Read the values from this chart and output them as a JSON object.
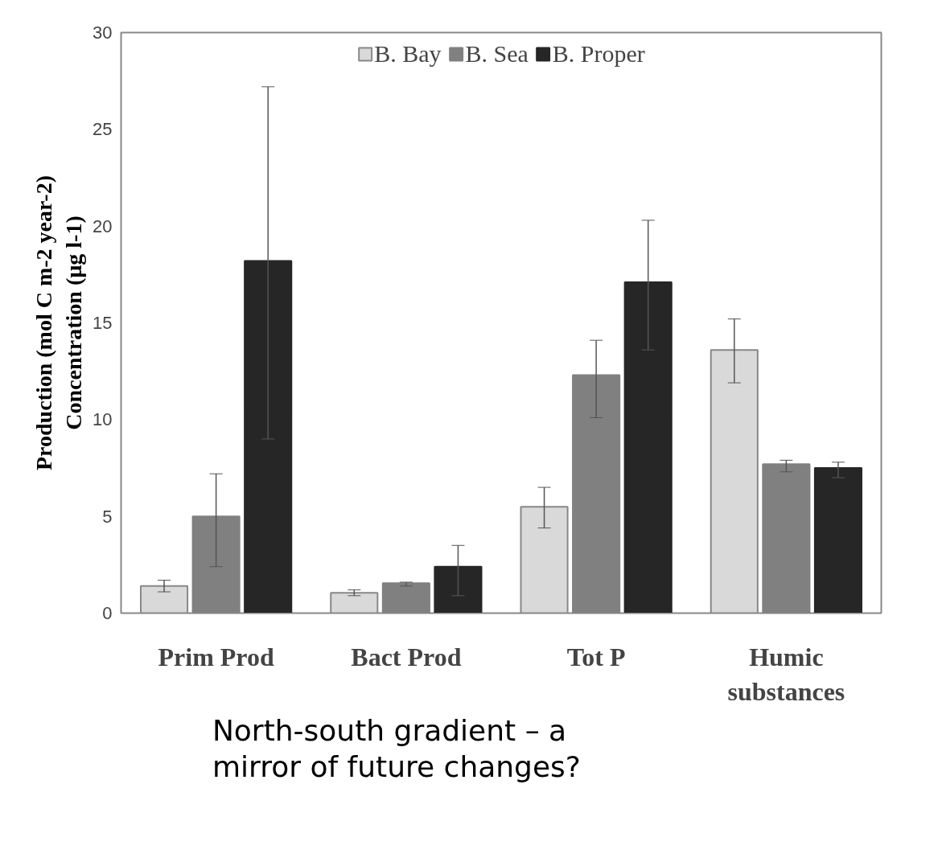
{
  "chart_data": {
    "type": "bar",
    "ylabel": "Production (mol C m-2 year-2)\nConcentration (µg l-1)",
    "categories": [
      "Prim Prod",
      "Bact Prod",
      "Tot P",
      "Humic\nsubstances"
    ],
    "series": [
      {
        "name": "B. Bay",
        "color": "#d9d9d9",
        "values": [
          1.4,
          1.05,
          5.5,
          13.6
        ],
        "errors": [
          [
            1.1,
            1.7
          ],
          [
            0.9,
            1.2
          ],
          [
            4.4,
            6.5
          ],
          [
            11.9,
            15.2
          ]
        ]
      },
      {
        "name": "B. Sea",
        "color": "#808080",
        "values": [
          5.0,
          1.55,
          12.3,
          7.7
        ],
        "errors": [
          [
            2.4,
            7.2
          ],
          [
            1.4,
            1.6
          ],
          [
            10.1,
            14.1
          ],
          [
            7.3,
            7.9
          ]
        ]
      },
      {
        "name": "B. Proper",
        "color": "#262626",
        "values": [
          18.2,
          2.4,
          17.1,
          7.5
        ],
        "errors": [
          [
            9.0,
            27.2
          ],
          [
            0.9,
            3.5
          ],
          [
            13.6,
            20.3
          ],
          [
            7.0,
            7.8
          ]
        ]
      }
    ],
    "ylim": [
      0,
      30
    ],
    "yticks": [
      0,
      5,
      10,
      15,
      20,
      25,
      30
    ],
    "grid": false,
    "legend": "top",
    "annotations": [
      "North-south gradient – a\nmirror of future changes?"
    ]
  }
}
